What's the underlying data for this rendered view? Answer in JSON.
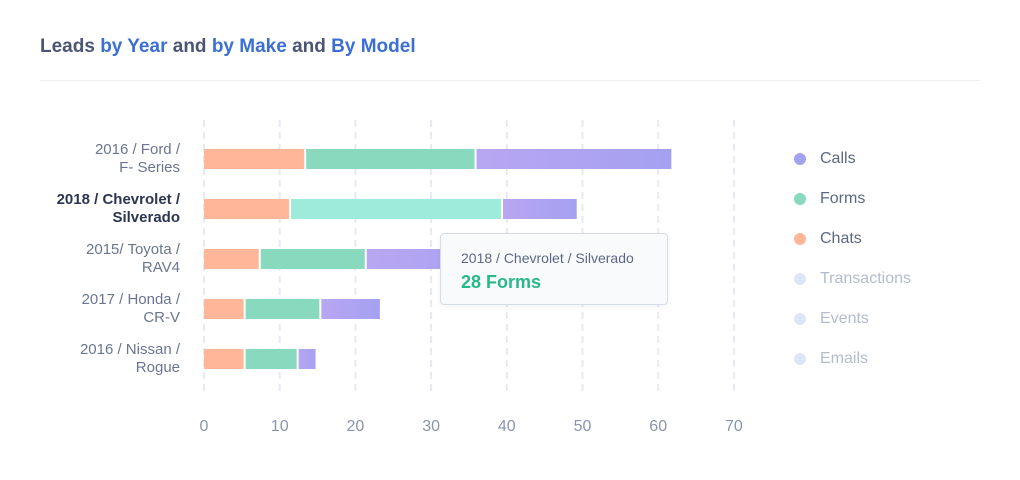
{
  "title": {
    "parts": [
      "Leads ",
      "by Year",
      " and ",
      "by Make",
      " and ",
      "By Model"
    ]
  },
  "colors": {
    "calls_start": "#b8a6f2",
    "calls_end": "#a4a1f1",
    "forms": "#88d9bd",
    "forms_highlight": "#9eeadb",
    "chats": "#ffb699",
    "inactive": "#dce6f6",
    "grid": "#e6eaf1",
    "highlight_accent": "#27b987"
  },
  "legend": [
    {
      "label": "Calls",
      "color": "#a4a1f1",
      "active": true
    },
    {
      "label": "Forms",
      "color": "#88d9bd",
      "active": true
    },
    {
      "label": "Chats",
      "color": "#ffb699",
      "active": true
    },
    {
      "label": "Transactions",
      "color": "#dce6f6",
      "active": false
    },
    {
      "label": "Events",
      "color": "#dce6f6",
      "active": false
    },
    {
      "label": "Emails",
      "color": "#dce6f6",
      "active": false
    }
  ],
  "tooltip": {
    "label": "2018 / Chevrolet / Silverado",
    "value": "28 Forms"
  },
  "chart_data": {
    "type": "bar",
    "orientation": "horizontal",
    "stacked": true,
    "categories": [
      [
        "2016 / Ford /",
        "F- Series"
      ],
      [
        "2018 / Chevrolet /",
        "Silverado"
      ],
      [
        "2015/ Toyota /",
        "RAV4"
      ],
      [
        "2017 / Honda /",
        "CR-V"
      ],
      [
        "2016 / Nissan /",
        "Rogue"
      ]
    ],
    "highlighted_index": 1,
    "series": [
      {
        "name": "Chats",
        "values": [
          13.5,
          11.5,
          7.5,
          5.5,
          5.5
        ]
      },
      {
        "name": "Forms",
        "values": [
          22.5,
          28,
          14,
          10,
          7
        ]
      },
      {
        "name": "Calls",
        "values": [
          26,
          10,
          22,
          8,
          2.5
        ]
      }
    ],
    "xlim": [
      0,
      70
    ],
    "xticks": [
      0,
      10,
      20,
      30,
      40,
      50,
      60,
      70
    ],
    "grid": true,
    "legend_position": "right"
  }
}
